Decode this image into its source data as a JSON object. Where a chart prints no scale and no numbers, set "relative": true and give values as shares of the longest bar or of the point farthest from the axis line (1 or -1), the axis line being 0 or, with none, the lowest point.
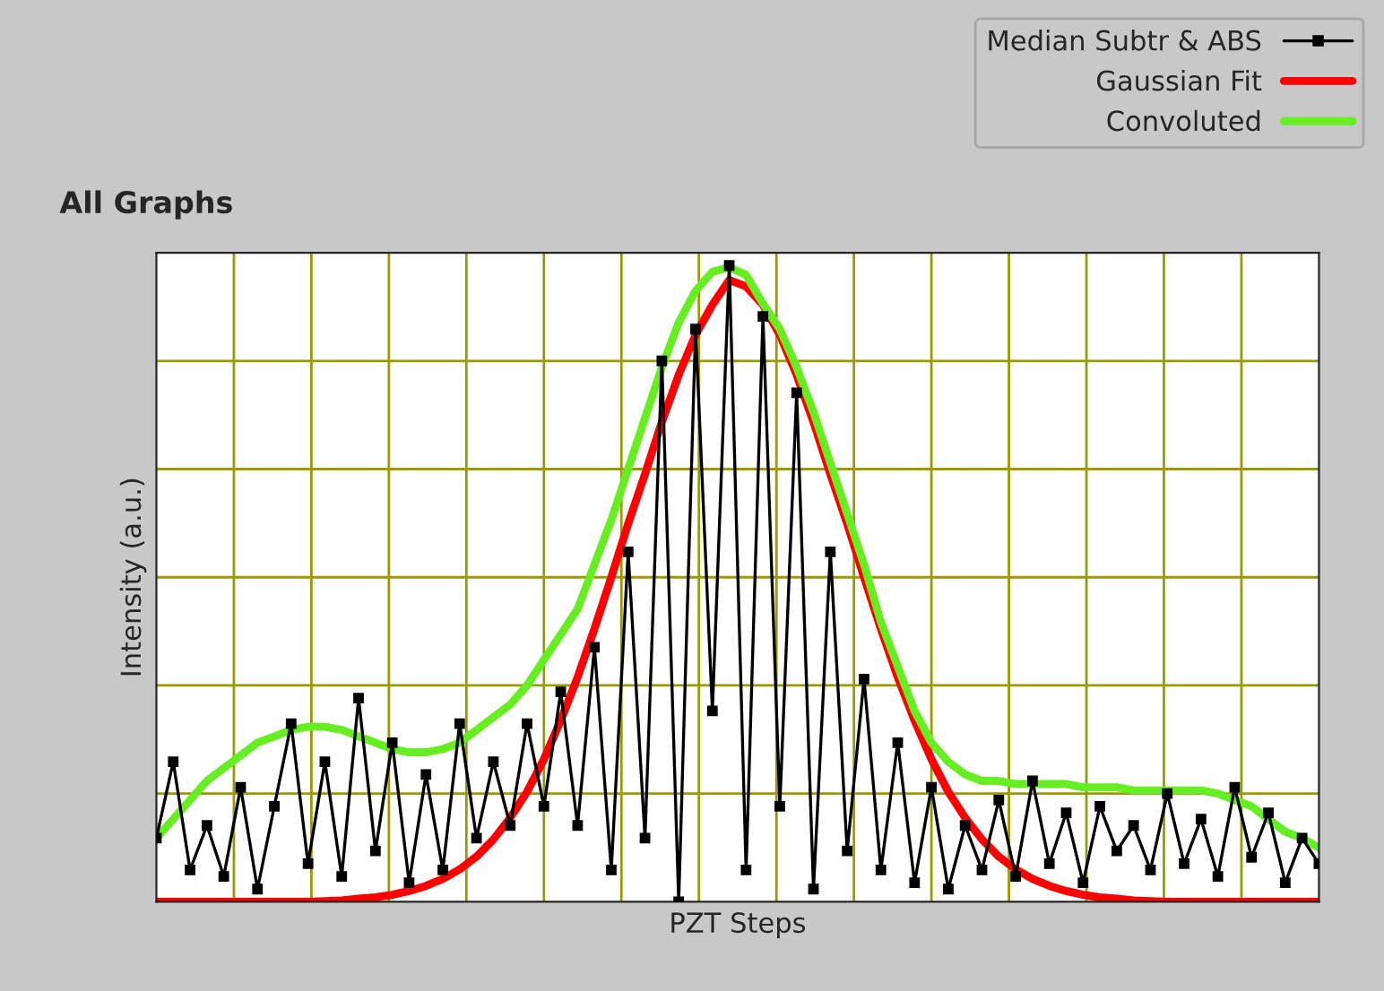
{
  "chart_data": {
    "type": "line",
    "title": "All Graphs",
    "xlabel": "PZT Steps",
    "ylabel": "Intensity (a.u.)",
    "relative": true,
    "grid": true,
    "legend": "top right",
    "categories": [
      null,
      null,
      null,
      null,
      null,
      null,
      null,
      null,
      null,
      null,
      null,
      null,
      null,
      null,
      null,
      null,
      null,
      null,
      null,
      null,
      null,
      null,
      null,
      null,
      null,
      null,
      null,
      null,
      null,
      null,
      null,
      null,
      null,
      null,
      null,
      null,
      null,
      null,
      null,
      null,
      null,
      null,
      null,
      null,
      null,
      null,
      null,
      null,
      null,
      null,
      null,
      null,
      null,
      null,
      null,
      null,
      null,
      null,
      null,
      null,
      null,
      null,
      null,
      null,
      null,
      null,
      null,
      null,
      null,
      null
    ],
    "series": [
      {
        "name": "Median Subtr & ABS",
        "color": "#000000",
        "marker": "square",
        "values": [
          0.1,
          0.22,
          0.05,
          0.12,
          0.04,
          0.18,
          0.02,
          0.15,
          0.28,
          0.06,
          0.22,
          0.04,
          0.32,
          0.08,
          0.25,
          0.03,
          0.2,
          0.05,
          0.28,
          0.1,
          0.22,
          0.12,
          0.28,
          0.15,
          0.33,
          0.12,
          0.4,
          0.05,
          0.55,
          0.1,
          0.85,
          0.0,
          0.9,
          0.3,
          1.0,
          0.05,
          0.92,
          0.15,
          0.8,
          0.02,
          0.55,
          0.08,
          0.35,
          0.05,
          0.25,
          0.03,
          0.18,
          0.02,
          0.12,
          0.05,
          0.16,
          0.04,
          0.19,
          0.06,
          0.14,
          0.03,
          0.15,
          0.08,
          0.12,
          0.05,
          0.17,
          0.06,
          0.13,
          0.04,
          0.18,
          0.07,
          0.14,
          0.03,
          0.1,
          0.06
        ]
      },
      {
        "name": "Gaussian Fit",
        "color": "#ff0000",
        "marker": "none",
        "values": [
          0.0,
          0.0,
          0.0,
          0.0,
          0.0,
          0.0,
          0.0,
          0.0,
          0.0,
          0.0,
          0.001,
          0.002,
          0.005,
          0.007,
          0.011,
          0.017,
          0.025,
          0.036,
          0.051,
          0.071,
          0.098,
          0.132,
          0.173,
          0.224,
          0.285,
          0.353,
          0.429,
          0.51,
          0.594,
          0.672,
          0.754,
          0.828,
          0.891,
          0.938,
          0.977,
          0.967,
          0.938,
          0.891,
          0.828,
          0.754,
          0.672,
          0.594,
          0.51,
          0.429,
          0.353,
          0.285,
          0.224,
          0.173,
          0.132,
          0.098,
          0.071,
          0.051,
          0.036,
          0.025,
          0.017,
          0.011,
          0.007,
          0.005,
          0.002,
          0.001,
          0.0,
          0.0,
          0.0,
          0.0,
          0.0,
          0.0,
          0.0,
          0.0,
          0.0,
          0.0
        ]
      },
      {
        "name": "Convoluted",
        "color": "#66ee22",
        "marker": "none",
        "values": [
          0.1,
          0.13,
          0.16,
          0.19,
          0.21,
          0.23,
          0.25,
          0.26,
          0.27,
          0.275,
          0.275,
          0.27,
          0.26,
          0.25,
          0.24,
          0.235,
          0.235,
          0.24,
          0.25,
          0.27,
          0.29,
          0.31,
          0.34,
          0.38,
          0.42,
          0.46,
          0.53,
          0.6,
          0.68,
          0.76,
          0.84,
          0.91,
          0.96,
          0.99,
          0.997,
          0.985,
          0.94,
          0.9,
          0.84,
          0.77,
          0.69,
          0.61,
          0.53,
          0.44,
          0.37,
          0.3,
          0.25,
          0.22,
          0.2,
          0.19,
          0.19,
          0.185,
          0.185,
          0.185,
          0.185,
          0.18,
          0.18,
          0.18,
          0.175,
          0.175,
          0.175,
          0.175,
          0.175,
          0.17,
          0.16,
          0.15,
          0.13,
          0.11,
          0.1,
          0.085
        ]
      }
    ]
  }
}
